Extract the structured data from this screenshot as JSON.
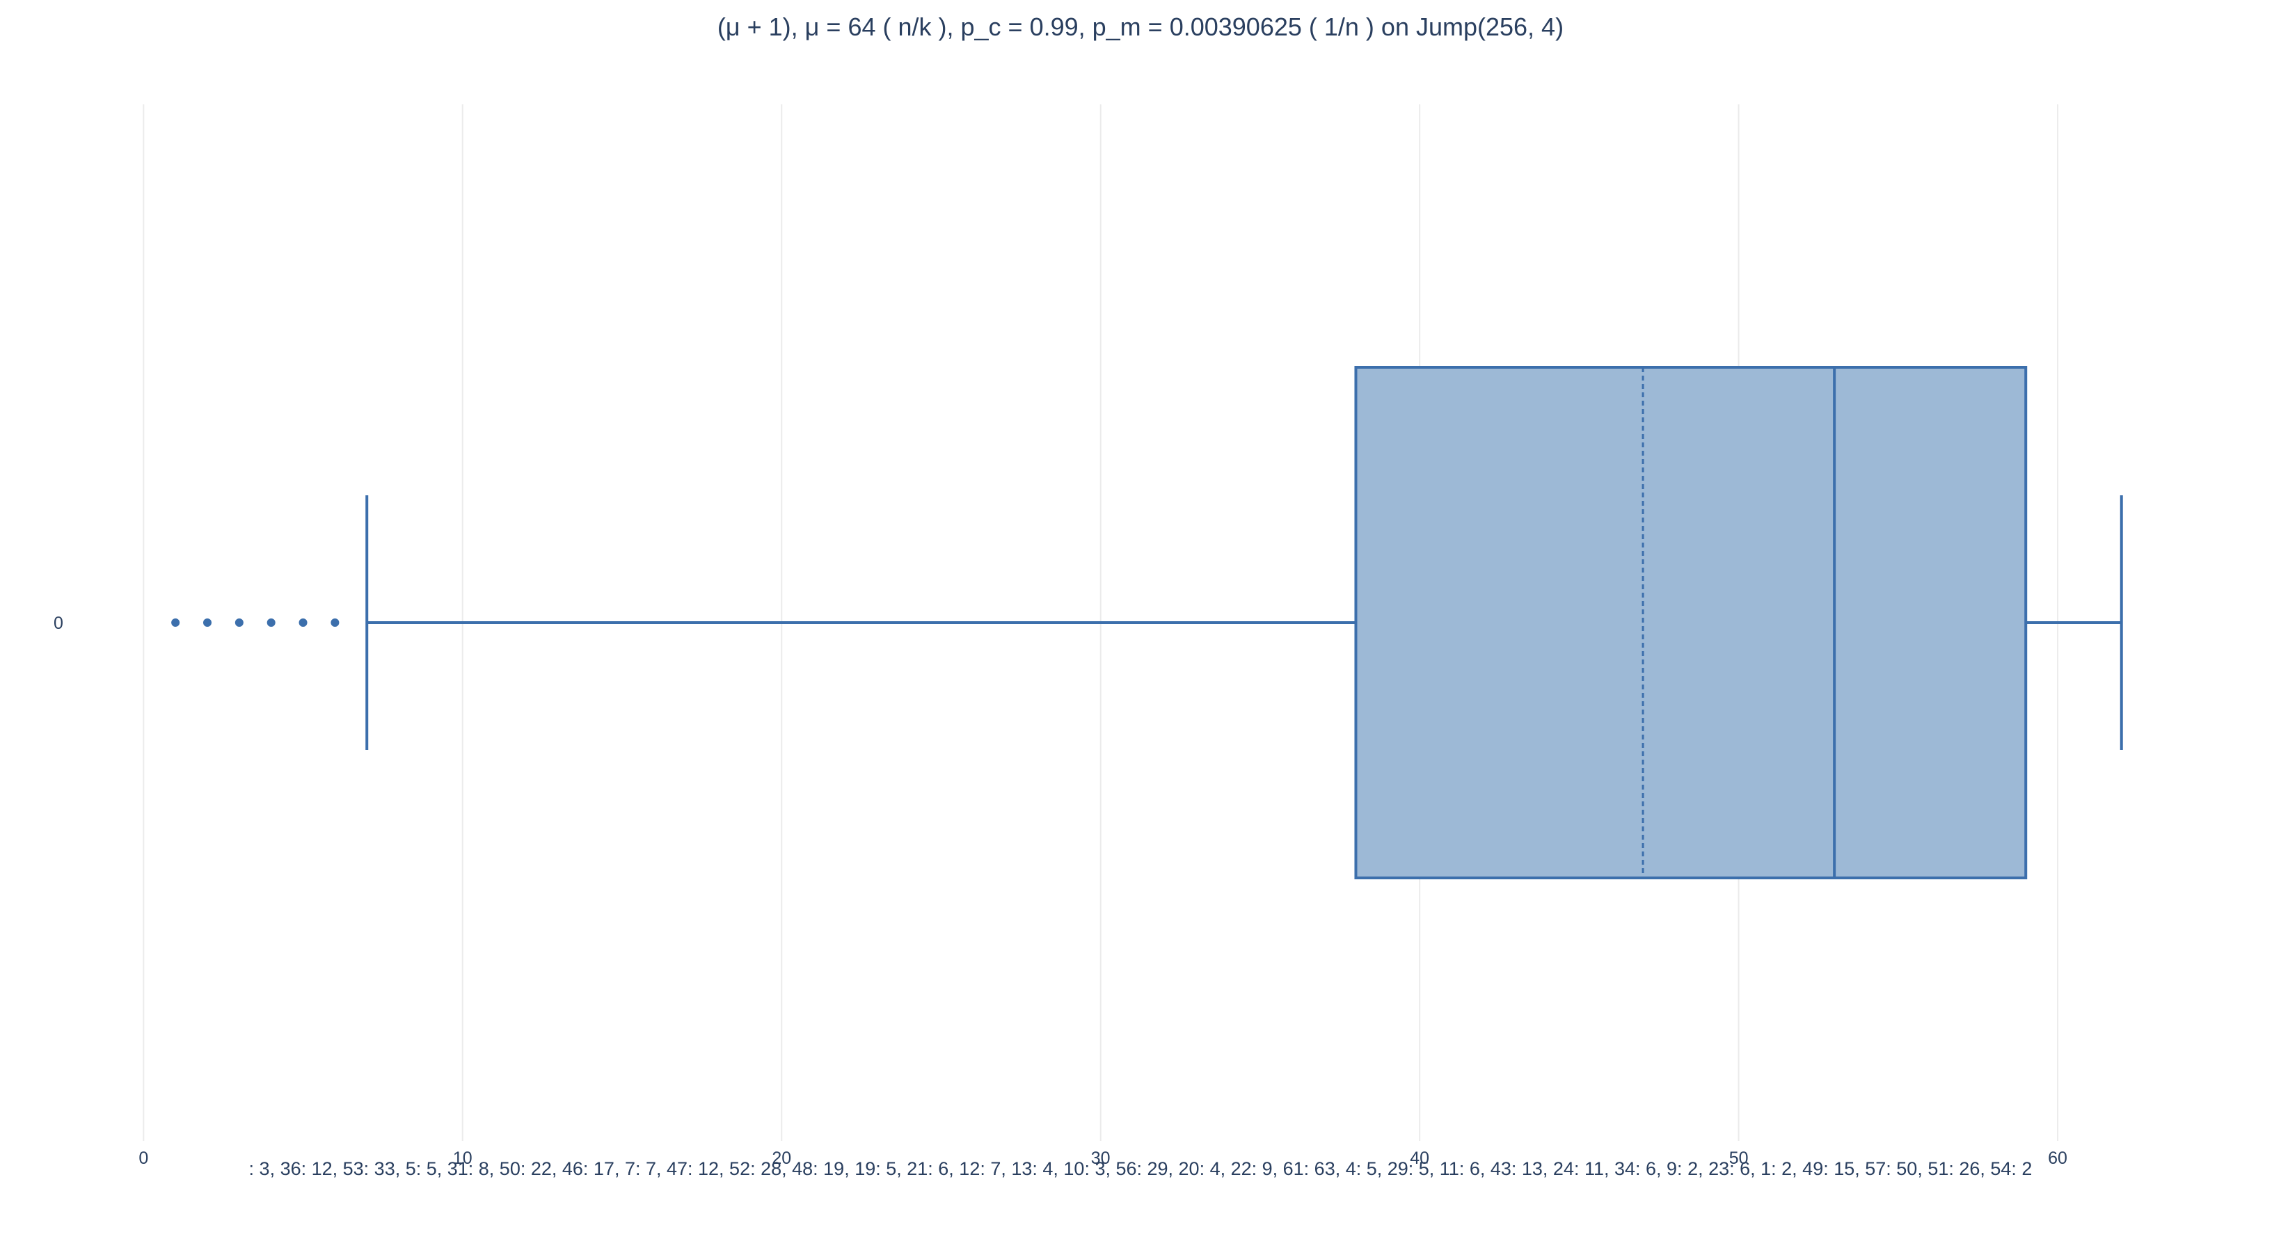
{
  "chart_data": {
    "type": "box",
    "title": "(μ + 1), μ = 64 ( n/k ), p_c = 0.99, p_m = 0.00390625 ( 1/n ) on Jump(256, 4)",
    "xlabel": ": 3, 36: 12, 53: 33, 5: 5, 31: 8, 50: 22, 46: 17, 7: 7, 47: 12, 52: 28, 48: 19, 19: 5, 21: 6, 12: 7, 13: 4, 10: 3, 56: 29, 20: 4, 22: 9, 61: 63, 4: 5, 29: 5, 11: 6, 43: 13, 24: 11, 34: 6, 9: 2, 23: 6, 1: 2, 49: 15, 57: 50, 51: 26, 54: 2",
    "ylabel": "",
    "orientation": "horizontal",
    "xlim": [
      -4.5,
      67
    ],
    "x_ticks": [
      0,
      10,
      20,
      30,
      40,
      50,
      60
    ],
    "y_categories": [
      "0"
    ],
    "grid": true,
    "series": [
      {
        "category": "0",
        "lower_fence": 7,
        "q1": 38,
        "median": 53,
        "mean": 47,
        "q3": 59,
        "upper_fence": 62,
        "outliers": [
          1,
          2,
          3,
          4,
          5,
          6
        ]
      }
    ],
    "colors": {
      "fill": "#9db9d6",
      "line": "#3c6fac",
      "grid": "#ebebeb",
      "text": "#2a3f5f"
    }
  }
}
